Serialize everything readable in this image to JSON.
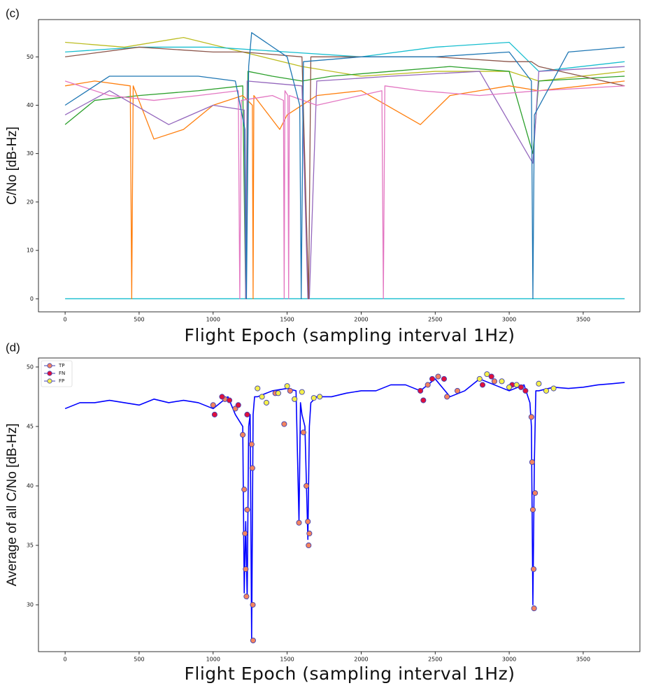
{
  "chart_data": [
    {
      "type": "line",
      "panel_label": "(c)",
      "x_label": "Flight Epoch (sampling interval 1Hz)",
      "y_label": "C/No [dB-Hz]",
      "xlim": [
        -180,
        3883
      ],
      "ylim": [
        -2.7,
        57.7
      ],
      "xticks": [
        0,
        500,
        1000,
        1500,
        2000,
        2500,
        3000,
        3500
      ],
      "yticks": [
        0,
        10,
        20,
        30,
        40,
        50
      ],
      "series": [
        {
          "color": "#17becf",
          "x": [
            0,
            3780
          ],
          "values": [
            0,
            0
          ]
        },
        {
          "color": "#bcbd22",
          "x": [
            0,
            400,
            800,
            1200,
            1600,
            2000,
            2500,
            3000,
            3200,
            3780
          ],
          "values": [
            53,
            52,
            54,
            51,
            48,
            46,
            47,
            47,
            45,
            47
          ]
        },
        {
          "color": "#2ca02c",
          "x": [
            0,
            200,
            500,
            900,
            1200,
            1220,
            1235,
            1400,
            1600,
            1800,
            2200,
            2600,
            3000,
            3160,
            3200,
            3780
          ],
          "values": [
            36,
            41,
            42,
            43,
            44,
            0,
            47,
            46,
            45,
            46,
            47,
            48,
            47,
            30,
            45,
            46
          ]
        },
        {
          "color": "#ff7f0e",
          "x": [
            0,
            200,
            440,
            450,
            460,
            600,
            800,
            1000,
            1200,
            1265,
            1270,
            1275,
            1450,
            1500,
            1700,
            2000,
            2400,
            2600,
            3000,
            3200,
            3500,
            3780
          ],
          "values": [
            44,
            45,
            44,
            0,
            44,
            33,
            35,
            40,
            42,
            40,
            0,
            42,
            35,
            38,
            42,
            43,
            36,
            42,
            44,
            43,
            44,
            45
          ]
        },
        {
          "color": "#17becf",
          "x": [
            0,
            500,
            1000,
            1500,
            2000,
            2500,
            3000,
            3200,
            3780
          ],
          "values": [
            51,
            52,
            52,
            51,
            50,
            52,
            53,
            47,
            49
          ]
        },
        {
          "color": "#9467bd",
          "x": [
            0,
            300,
            700,
            1000,
            1210,
            1220,
            1230,
            1600,
            1640,
            1650,
            1700,
            2200,
            2800,
            3160,
            3200,
            3780
          ],
          "values": [
            38,
            43,
            36,
            40,
            39,
            0,
            45,
            44,
            0,
            0,
            45,
            46,
            47,
            28,
            47,
            48
          ]
        },
        {
          "color": "#8c564b",
          "x": [
            0,
            500,
            1000,
            1200,
            1600,
            1645,
            1660,
            2000,
            2500,
            3000,
            3150,
            3200,
            3780
          ],
          "values": [
            50,
            52,
            51,
            51,
            50,
            0,
            50,
            50,
            50,
            49,
            49,
            48,
            44
          ]
        },
        {
          "color": "#e377c2",
          "x": [
            0,
            300,
            600,
            900,
            1170,
            1180,
            1190,
            1400,
            1475,
            1480,
            1485,
            1505,
            1510,
            1515,
            1700,
            2140,
            2150,
            2160,
            2400,
            2800,
            3200,
            3780
          ],
          "values": [
            45,
            42,
            41,
            42,
            43,
            0,
            41,
            42,
            41,
            0,
            43,
            42,
            0,
            42,
            40,
            43,
            0,
            44,
            43,
            42,
            43,
            44
          ]
        },
        {
          "color": "#1f77b4",
          "x": [
            0,
            300,
            600,
            900,
            1150,
            1215,
            1225,
            1240,
            1260,
            1500,
            1585,
            1595,
            1610,
            2000,
            2500,
            3000,
            3150,
            3160,
            3170,
            3400,
            3780
          ],
          "values": [
            40,
            46,
            46,
            46,
            45,
            35,
            0,
            48,
            55,
            50,
            40,
            0,
            49,
            50,
            50,
            51,
            45,
            0,
            38,
            51,
            52
          ]
        }
      ]
    },
    {
      "type": "line",
      "panel_label": "(d)",
      "x_label": "Flight Epoch (sampling interval 1Hz)",
      "y_label": "Average of all C/No [dB-Hz]",
      "xlim": [
        -180,
        3883
      ],
      "ylim": [
        26.06,
        50.76
      ],
      "xticks": [
        0,
        500,
        1000,
        1500,
        2000,
        2500,
        3000,
        3500
      ],
      "yticks": [
        30,
        35,
        40,
        45,
        50
      ],
      "legend": "upper left",
      "series": [
        {
          "color": "#0000ff",
          "x": [
            0,
            100,
            200,
            300,
            400,
            500,
            600,
            700,
            800,
            900,
            1000,
            1100,
            1150,
            1200,
            1210,
            1220,
            1230,
            1240,
            1250,
            1260,
            1270,
            1280,
            1300,
            1400,
            1500,
            1560,
            1580,
            1590,
            1600,
            1620,
            1640,
            1650,
            1660,
            1700,
            1800,
            1900,
            2000,
            2100,
            2200,
            2300,
            2400,
            2500,
            2600,
            2700,
            2800,
            2900,
            3000,
            3100,
            3140,
            3150,
            3160,
            3170,
            3180,
            3200,
            3300,
            3400,
            3500,
            3600,
            3700,
            3780
          ],
          "values": [
            46.5,
            47,
            47,
            47.2,
            47,
            46.8,
            47.3,
            47,
            47.2,
            47,
            46.5,
            47.5,
            46,
            45,
            31,
            37,
            30.5,
            45,
            46,
            27,
            46,
            47.5,
            47.5,
            48,
            48.2,
            48,
            37,
            47,
            46,
            45,
            35.5,
            45,
            47,
            47.5,
            47.5,
            47.8,
            48,
            48,
            48.5,
            48.5,
            48,
            49,
            47.5,
            48,
            49,
            48.5,
            48,
            48.5,
            47,
            45,
            30,
            42,
            48,
            48,
            48.3,
            48.2,
            48.3,
            48.5,
            48.6,
            48.7
          ]
        },
        {
          "type": "scatter",
          "name": "TP",
          "color": "#f4845f",
          "edgecolor": "#4040b0",
          "x": [
            1000,
            1080,
            1150,
            1200,
            1210,
            1215,
            1220,
            1225,
            1230,
            1260,
            1265,
            1270,
            1268,
            1420,
            1480,
            1520,
            1580,
            1610,
            1630,
            1640,
            1645,
            1650,
            2450,
            2520,
            2580,
            2650,
            2900,
            3150,
            3155,
            3160,
            3165,
            3168,
            3175
          ],
          "values": [
            46.8,
            47.3,
            46.5,
            44.3,
            39.7,
            36,
            33,
            30.7,
            38,
            43.5,
            41.5,
            27,
            30,
            47.8,
            45.2,
            48,
            36.9,
            44.5,
            40,
            37,
            35,
            36,
            48.5,
            49.2,
            47.5,
            48,
            48.8,
            45.8,
            42,
            38,
            33,
            29.7,
            39.4
          ]
        },
        {
          "type": "scatter",
          "name": "FN",
          "color": "#e0103c",
          "edgecolor": "#4040b0",
          "x": [
            1010,
            1060,
            1110,
            1170,
            1230,
            2400,
            2420,
            2480,
            2560,
            2820,
            2880,
            3020,
            3080,
            3110
          ],
          "values": [
            46,
            47.5,
            47.2,
            46.8,
            46,
            48,
            47.2,
            49,
            49,
            48.5,
            49.2,
            48.5,
            48.3,
            48
          ]
        },
        {
          "type": "scatter",
          "name": "FP",
          "color": "#f5f04a",
          "edgecolor": "#4040b0",
          "x": [
            1300,
            1330,
            1360,
            1440,
            1500,
            1550,
            1600,
            1680,
            1720,
            2800,
            2850,
            2950,
            3000,
            3050,
            3200,
            3250,
            3300
          ],
          "values": [
            48.2,
            47.5,
            47,
            47.8,
            48.4,
            47.3,
            47.9,
            47.4,
            47.5,
            49,
            49.4,
            48.8,
            48.3,
            48.5,
            48.6,
            48,
            48.2
          ]
        }
      ]
    }
  ]
}
